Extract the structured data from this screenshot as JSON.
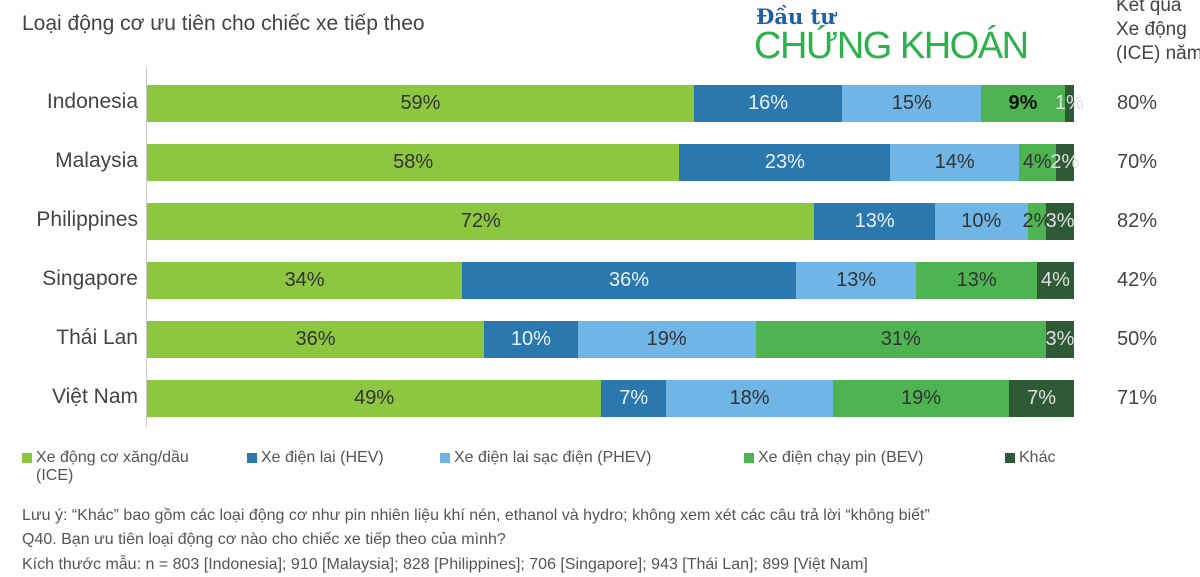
{
  "title": "Loại động cơ ưu tiên cho chiếc xe tiếp theo",
  "logo": {
    "line1": "Đầu tư",
    "line2": "CHỨNG KHOÁN"
  },
  "right_header": [
    "Kết quả",
    "Xe động",
    "(ICE) năm"
  ],
  "chart_data": {
    "type": "bar",
    "orientation": "horizontal-stacked-100",
    "title": "Loại động cơ ưu tiên cho chiếc xe tiếp theo",
    "categories": [
      "Indonesia",
      "Malaysia",
      "Philippines",
      "Singapore",
      "Thái Lan",
      "Việt Nam"
    ],
    "series": [
      {
        "name": "Xe động cơ xăng/dầu (ICE)",
        "color": "#8dc63f",
        "values": [
          59,
          58,
          72,
          34,
          36,
          49
        ]
      },
      {
        "name": "Xe điện lai (HEV)",
        "color": "#2a78ae",
        "values": [
          16,
          23,
          13,
          36,
          10,
          7
        ]
      },
      {
        "name": "Xe điện lai sạc điện (PHEV)",
        "color": "#6fb6e6",
        "values": [
          15,
          14,
          10,
          13,
          19,
          18
        ]
      },
      {
        "name": "Xe điện chạy pin (BEV)",
        "color": "#4db451",
        "values": [
          9,
          4,
          2,
          13,
          31,
          19
        ]
      },
      {
        "name": "Khác",
        "color": "#2e5b36",
        "values": [
          1,
          2,
          3,
          4,
          3,
          7
        ]
      }
    ],
    "right_values": [
      "80%",
      "70%",
      "82%",
      "42%",
      "50%",
      "71%"
    ],
    "legend_position": "bottom"
  },
  "notes": [
    "Lưu ý: “Khác” bao gồm các loại động cơ như pin nhiên liệu khí nén, ethanol và hydro; không xem xét các câu trả lời “không biết”",
    "Q40. Bạn ưu tiên loại động cơ nào cho chiếc xe tiếp theo của mình?",
    "Kích thước mẫu: n = 803 [Indonesia]; 910 [Malaysia]; 828 [Philippines]; 706 [Singapore]; 943 [Thái Lan]; 899 [Việt Nam]"
  ]
}
